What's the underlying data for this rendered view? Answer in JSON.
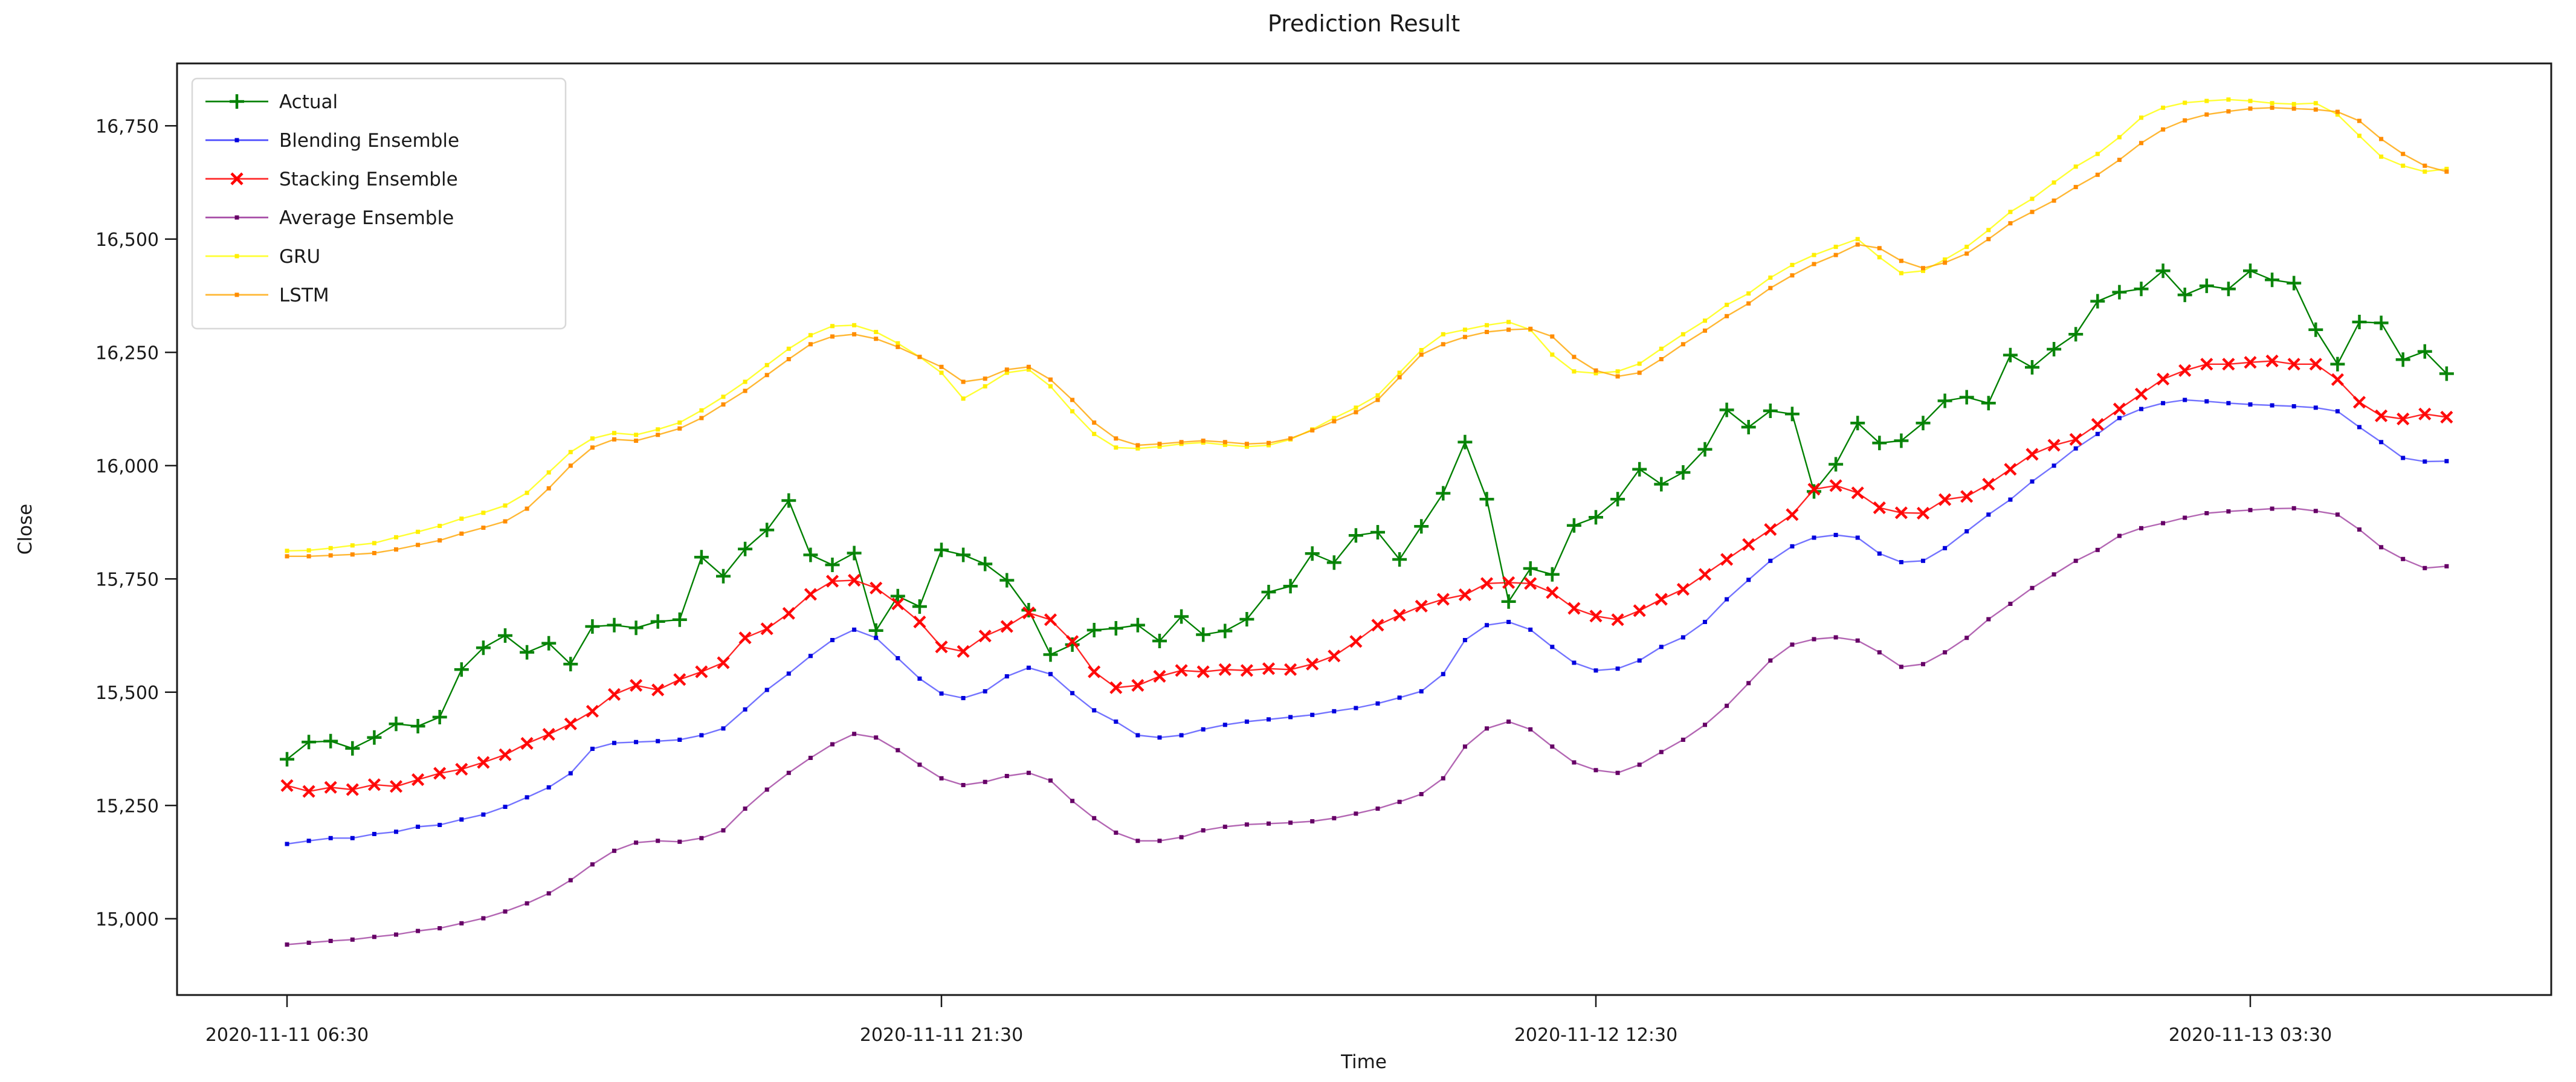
{
  "title": "Prediction Result",
  "axes": {
    "xlabel": "Time",
    "ylabel": "Close"
  },
  "legend": {
    "position": "upper left",
    "items": [
      {
        "label": "Actual",
        "marker": "plus"
      },
      {
        "label": "Blending Ensemble",
        "marker": "dot"
      },
      {
        "label": "Stacking Ensemble",
        "marker": "x"
      },
      {
        "label": "Average Ensemble",
        "marker": "dot"
      },
      {
        "label": "GRU",
        "marker": "dot"
      },
      {
        "label": "LSTM",
        "marker": "dot"
      }
    ]
  },
  "colors": {
    "actual": "#008000",
    "blending": "#0000ff",
    "stacking": "#ff0000",
    "average": "#800080",
    "gru": "#ffff00",
    "lstm": "#ffa500"
  },
  "chart_data": {
    "type": "line",
    "title": "Prediction Result",
    "xlabel": "Time",
    "ylabel": "Close",
    "grid": false,
    "legend_position": "upper left",
    "x_start": "2020-11-11 06:30",
    "x_step_minutes": 30,
    "n_points": 100,
    "x_tick_indices": [
      0,
      30,
      60,
      90
    ],
    "x_tick_labels": [
      "2020-11-11 06:30",
      "2020-11-11 21:30",
      "2020-11-12 12:30",
      "2020-11-13 03:30"
    ],
    "y_ticks": [
      15000,
      15250,
      15500,
      15750,
      16000,
      16250,
      16500,
      16750
    ],
    "y_tick_labels": [
      "15,000",
      "15,250",
      "15,500",
      "15,750",
      "16,000",
      "16,250",
      "16,500",
      "16,750"
    ],
    "ylim": [
      14831,
      16887
    ],
    "series": [
      {
        "name": "Actual",
        "color": "#008000",
        "marker": "plus",
        "marker_color": "#008000",
        "line_opacity": 1.0,
        "values": [
          15352,
          15390,
          15392,
          15376,
          15400,
          15430,
          15425,
          15445,
          15550,
          15598,
          15625,
          15588,
          15608,
          15562,
          15645,
          15648,
          15642,
          15656,
          15660,
          15798,
          15756,
          15816,
          15858,
          15923,
          15803,
          15781,
          15807,
          15636,
          15712,
          15689,
          15814,
          15803,
          15783,
          15747,
          15681,
          15583,
          15605,
          15637,
          15641,
          15648,
          15613,
          15667,
          15627,
          15635,
          15661,
          15721,
          15734,
          15806,
          15786,
          15846,
          15853,
          15793,
          15866,
          15939,
          16052,
          15926,
          15700,
          15773,
          15760,
          15868,
          15886,
          15926,
          15992,
          15959,
          15985,
          16036,
          16123,
          16085,
          16121,
          16114,
          15943,
          16003,
          16094,
          16050,
          16055,
          16094,
          16143,
          16151,
          16138,
          16244,
          16217,
          16257,
          16290,
          16363,
          16383,
          16390,
          16430,
          16377,
          16397,
          16390,
          16430,
          16410,
          16403,
          16300,
          16224,
          16317,
          16315,
          16234,
          16252,
          16203
        ]
      },
      {
        "name": "Blending Ensemble",
        "color": "#0000ff",
        "marker": "dot",
        "marker_color": "#0000dd",
        "line_opacity": 0.55,
        "values": [
          15165,
          15172,
          15178,
          15178,
          15187,
          15192,
          15203,
          15207,
          15219,
          15230,
          15247,
          15268,
          15290,
          15321,
          15375,
          15388,
          15390,
          15392,
          15395,
          15405,
          15420,
          15462,
          15505,
          15541,
          15580,
          15615,
          15638,
          15620,
          15575,
          15530,
          15497,
          15487,
          15502,
          15535,
          15554,
          15540,
          15498,
          15460,
          15435,
          15405,
          15400,
          15405,
          15418,
          15428,
          15435,
          15440,
          15445,
          15450,
          15458,
          15465,
          15475,
          15488,
          15502,
          15540,
          15615,
          15648,
          15655,
          15638,
          15600,
          15565,
          15548,
          15552,
          15570,
          15600,
          15621,
          15655,
          15705,
          15748,
          15790,
          15822,
          15841,
          15847,
          15841,
          15806,
          15787,
          15790,
          15818,
          15855,
          15892,
          15925,
          15965,
          16000,
          16038,
          16070,
          16105,
          16125,
          16138,
          16145,
          16142,
          16138,
          16135,
          16133,
          16131,
          16128,
          16120,
          16085,
          16052,
          16017,
          16009,
          16010
        ]
      },
      {
        "name": "Stacking Ensemble",
        "color": "#ff0000",
        "marker": "x",
        "marker_color": "#ff0000",
        "line_opacity": 0.85,
        "values": [
          15294,
          15281,
          15290,
          15285,
          15296,
          15292,
          15307,
          15321,
          15330,
          15345,
          15362,
          15387,
          15407,
          15430,
          15458,
          15495,
          15515,
          15505,
          15528,
          15545,
          15565,
          15620,
          15640,
          15674,
          15716,
          15745,
          15747,
          15730,
          15695,
          15655,
          15600,
          15590,
          15624,
          15645,
          15675,
          15660,
          15612,
          15545,
          15510,
          15515,
          15535,
          15548,
          15545,
          15550,
          15548,
          15552,
          15550,
          15562,
          15580,
          15612,
          15648,
          15670,
          15690,
          15705,
          15715,
          15740,
          15742,
          15740,
          15720,
          15685,
          15668,
          15660,
          15680,
          15705,
          15727,
          15760,
          15793,
          15826,
          15859,
          15892,
          15948,
          15956,
          15940,
          15907,
          15896,
          15895,
          15925,
          15932,
          15959,
          15992,
          16025,
          16045,
          16058,
          16091,
          16125,
          16158,
          16191,
          16210,
          16224,
          16224,
          16228,
          16231,
          16224,
          16224,
          16190,
          16140,
          16110,
          16103,
          16114,
          16107
        ]
      },
      {
        "name": "Average Ensemble",
        "color": "#800080",
        "marker": "dot",
        "marker_color": "#660066",
        "line_opacity": 0.6,
        "values": [
          14943,
          14947,
          14951,
          14954,
          14960,
          14965,
          14973,
          14979,
          14990,
          15001,
          15016,
          15034,
          15056,
          15085,
          15120,
          15150,
          15168,
          15172,
          15170,
          15178,
          15195,
          15243,
          15285,
          15322,
          15355,
          15385,
          15408,
          15400,
          15372,
          15340,
          15310,
          15295,
          15302,
          15315,
          15322,
          15305,
          15260,
          15222,
          15190,
          15172,
          15172,
          15180,
          15195,
          15203,
          15208,
          15210,
          15212,
          15215,
          15222,
          15232,
          15243,
          15258,
          15275,
          15310,
          15380,
          15420,
          15435,
          15418,
          15380,
          15345,
          15328,
          15322,
          15340,
          15368,
          15395,
          15428,
          15470,
          15520,
          15570,
          15605,
          15617,
          15621,
          15614,
          15588,
          15556,
          15562,
          15588,
          15620,
          15661,
          15695,
          15730,
          15760,
          15790,
          15814,
          15845,
          15862,
          15873,
          15885,
          15895,
          15899,
          15902,
          15905,
          15906,
          15900,
          15892,
          15859,
          15820,
          15794,
          15774,
          15778
        ]
      },
      {
        "name": "GRU",
        "color": "#ffff00",
        "marker": "dot",
        "marker_color": "#ffee00",
        "line_opacity": 0.8,
        "values": [
          15812,
          15813,
          15818,
          15824,
          15829,
          15842,
          15854,
          15867,
          15883,
          15896,
          15912,
          15940,
          15985,
          16030,
          16060,
          16072,
          16068,
          16080,
          16095,
          16122,
          16152,
          16185,
          16222,
          16258,
          16288,
          16308,
          16310,
          16295,
          16270,
          16240,
          16205,
          16148,
          16175,
          16205,
          16212,
          16175,
          16120,
          16070,
          16040,
          16038,
          16042,
          16048,
          16051,
          16046,
          16042,
          16045,
          16058,
          16080,
          16105,
          16128,
          16155,
          16205,
          16255,
          16290,
          16300,
          16310,
          16317,
          16300,
          16245,
          16208,
          16204,
          16208,
          16225,
          16258,
          16290,
          16320,
          16355,
          16380,
          16415,
          16443,
          16465,
          16483,
          16500,
          16460,
          16425,
          16430,
          16455,
          16483,
          16520,
          16560,
          16589,
          16625,
          16660,
          16688,
          16725,
          16768,
          16790,
          16801,
          16805,
          16808,
          16805,
          16800,
          16798,
          16800,
          16775,
          16728,
          16682,
          16662,
          16649,
          16655
        ]
      },
      {
        "name": "LSTM",
        "color": "#ffa500",
        "marker": "dot",
        "marker_color": "#ff8c00",
        "line_opacity": 0.8,
        "values": [
          15800,
          15800,
          15802,
          15804,
          15807,
          15815,
          15825,
          15835,
          15850,
          15863,
          15877,
          15905,
          15950,
          16000,
          16040,
          16058,
          16055,
          16068,
          16082,
          16105,
          16135,
          16165,
          16200,
          16235,
          16268,
          16285,
          16290,
          16280,
          16262,
          16240,
          16218,
          16185,
          16192,
          16212,
          16218,
          16190,
          16145,
          16095,
          16060,
          16045,
          16048,
          16052,
          16055,
          16052,
          16048,
          16050,
          16060,
          16078,
          16098,
          16118,
          16145,
          16195,
          16245,
          16268,
          16284,
          16295,
          16300,
          16302,
          16285,
          16240,
          16210,
          16197,
          16205,
          16235,
          16268,
          16298,
          16330,
          16358,
          16392,
          16420,
          16445,
          16465,
          16488,
          16480,
          16452,
          16436,
          16448,
          16468,
          16500,
          16535,
          16560,
          16585,
          16615,
          16642,
          16675,
          16712,
          16742,
          16762,
          16775,
          16782,
          16788,
          16790,
          16788,
          16786,
          16781,
          16761,
          16721,
          16688,
          16662,
          16649
        ]
      }
    ]
  }
}
